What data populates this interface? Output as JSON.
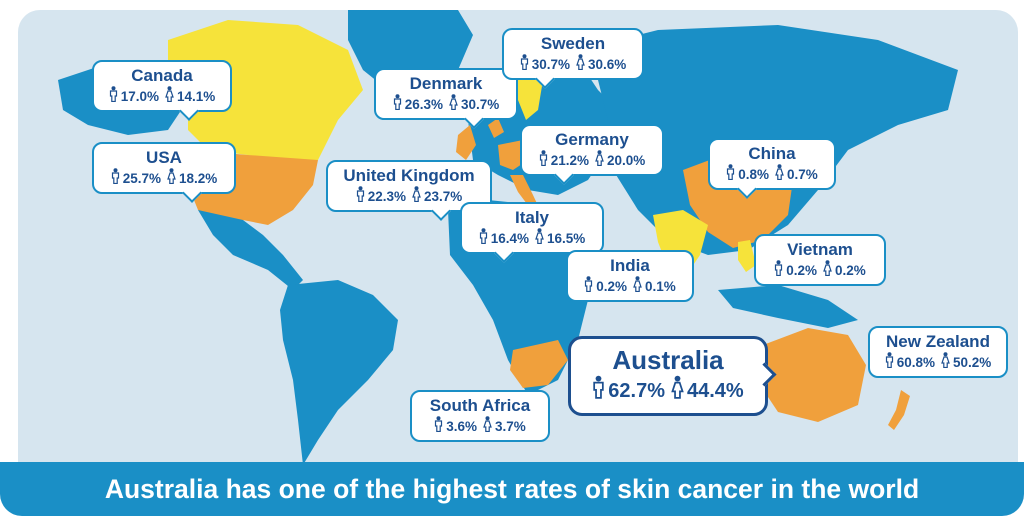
{
  "headline": "Australia has one of the highest rates of skin cancer in the world",
  "icons": {
    "male": "male-figure-icon",
    "female": "female-figure-icon"
  },
  "colors": {
    "ocean": "#d6e5ef",
    "land_default": "#1a8fc6",
    "land_orange": "#f0a03c",
    "land_yellow": "#f6e33a",
    "callout_border": "#1a8fc6",
    "text": "#1d4f8f",
    "banner": "#1a8fc6"
  },
  "countries": [
    {
      "id": "canada",
      "name": "Canada",
      "male": "17.0%",
      "female": "14.1%",
      "fill": "yellow"
    },
    {
      "id": "usa",
      "name": "USA",
      "male": "25.7%",
      "female": "18.2%",
      "fill": "orange"
    },
    {
      "id": "denmark",
      "name": "Denmark",
      "male": "26.3%",
      "female": "30.7%",
      "fill": "orange"
    },
    {
      "id": "sweden",
      "name": "Sweden",
      "male": "30.7%",
      "female": "30.6%",
      "fill": "yellow"
    },
    {
      "id": "germany",
      "name": "Germany",
      "male": "21.2%",
      "female": "20.0%",
      "fill": "orange"
    },
    {
      "id": "united-kingdom",
      "name": "United Kingdom",
      "male": "22.3%",
      "female": "23.7%",
      "fill": "orange"
    },
    {
      "id": "italy",
      "name": "Italy",
      "male": "16.4%",
      "female": "16.5%",
      "fill": "orange"
    },
    {
      "id": "china",
      "name": "China",
      "male": "0.8%",
      "female": "0.7%",
      "fill": "orange"
    },
    {
      "id": "india",
      "name": "India",
      "male": "0.2%",
      "female": "0.1%",
      "fill": "yellow"
    },
    {
      "id": "vietnam",
      "name": "Vietnam",
      "male": "0.2%",
      "female": "0.2%",
      "fill": "yellow"
    },
    {
      "id": "australia",
      "name": "Australia",
      "male": "62.7%",
      "female": "44.4%",
      "fill": "orange"
    },
    {
      "id": "new-zealand",
      "name": "New Zealand",
      "male": "60.8%",
      "female": "50.2%",
      "fill": "orange"
    },
    {
      "id": "south-africa",
      "name": "South Africa",
      "male": "3.6%",
      "female": "3.7%",
      "fill": "orange"
    }
  ]
}
